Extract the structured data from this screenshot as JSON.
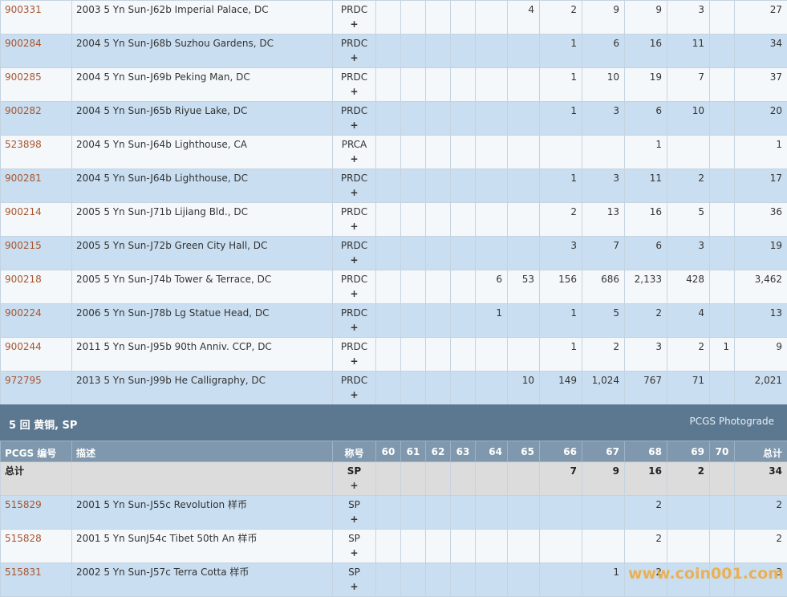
{
  "top_rows": [
    {
      "code": "900331",
      "desc": "2003 5 Yn Sun-J62b Imperial Palace, DC",
      "grade": "PRDC",
      "plus": "+",
      "c": [
        "",
        "",
        "",
        "",
        "",
        "4",
        "2",
        "9",
        "9",
        "3",
        "",
        "27"
      ]
    },
    {
      "code": "900284",
      "desc": "2004 5 Yn Sun-J68b Suzhou Gardens, DC",
      "grade": "PRDC",
      "plus": "+",
      "c": [
        "",
        "",
        "",
        "",
        "",
        "",
        "1",
        "6",
        "16",
        "11",
        "",
        "34"
      ]
    },
    {
      "code": "900285",
      "desc": "2004 5 Yn Sun-J69b Peking Man, DC",
      "grade": "PRDC",
      "plus": "+",
      "c": [
        "",
        "",
        "",
        "",
        "",
        "",
        "1",
        "10",
        "19",
        "7",
        "",
        "37"
      ]
    },
    {
      "code": "900282",
      "desc": "2004 5 Yn Sun-J65b Riyue Lake, DC",
      "grade": "PRDC",
      "plus": "+",
      "c": [
        "",
        "",
        "",
        "",
        "",
        "",
        "1",
        "3",
        "6",
        "10",
        "",
        "20"
      ]
    },
    {
      "code": "523898",
      "desc": "2004 5 Yn Sun-J64b Lighthouse, CA",
      "grade": "PRCA",
      "plus": "+",
      "c": [
        "",
        "",
        "",
        "",
        "",
        "",
        "",
        "",
        "1",
        "",
        "",
        "1"
      ]
    },
    {
      "code": "900281",
      "desc": "2004 5 Yn Sun-J64b Lighthouse, DC",
      "grade": "PRDC",
      "plus": "+",
      "c": [
        "",
        "",
        "",
        "",
        "",
        "",
        "1",
        "3",
        "11",
        "2",
        "",
        "17"
      ]
    },
    {
      "code": "900214",
      "desc": "2005 5 Yn Sun-J71b Lijiang Bld., DC",
      "grade": "PRDC",
      "plus": "+",
      "c": [
        "",
        "",
        "",
        "",
        "",
        "",
        "2",
        "13",
        "16",
        "5",
        "",
        "36"
      ]
    },
    {
      "code": "900215",
      "desc": "2005 5 Yn Sun-J72b Green City Hall, DC",
      "grade": "PRDC",
      "plus": "+",
      "c": [
        "",
        "",
        "",
        "",
        "",
        "",
        "3",
        "7",
        "6",
        "3",
        "",
        "19"
      ]
    },
    {
      "code": "900218",
      "desc": "2005 5 Yn Sun-J74b Tower & Terrace, DC",
      "grade": "PRDC",
      "plus": "+",
      "c": [
        "",
        "",
        "",
        "",
        "6",
        "53",
        "156",
        "686",
        "2,133",
        "428",
        "",
        "3,462"
      ]
    },
    {
      "code": "900224",
      "desc": "2006 5 Yn Sun-J78b Lg Statue Head, DC",
      "grade": "PRDC",
      "plus": "+",
      "c": [
        "",
        "",
        "",
        "",
        "1",
        "",
        "1",
        "5",
        "2",
        "4",
        "",
        "13"
      ]
    },
    {
      "code": "900244",
      "desc": "2011 5 Yn Sun-J95b 90th Anniv. CCP, DC",
      "grade": "PRDC",
      "plus": "+",
      "c": [
        "",
        "",
        "",
        "",
        "",
        "",
        "1",
        "2",
        "3",
        "2",
        "1",
        "9"
      ]
    },
    {
      "code": "972795",
      "desc": "2013 5 Yn Sun-J99b He Calligraphy, DC",
      "grade": "PRDC",
      "plus": "+",
      "c": [
        "",
        "",
        "",
        "",
        "",
        "10",
        "149",
        "1,024",
        "767",
        "71",
        "",
        "2,021"
      ]
    }
  ],
  "section": {
    "title": "5 回 黄铜, SP",
    "photograde": "PCGS Photograde"
  },
  "header": {
    "code": "PCGS 编号",
    "desc": "描述",
    "grade": "称号",
    "cols": [
      "60",
      "61",
      "62",
      "63",
      "64",
      "65",
      "66",
      "67",
      "68",
      "69",
      "70",
      "总计"
    ]
  },
  "total_row": {
    "label": "总计",
    "grade": "SP",
    "plus": "+",
    "c": [
      "",
      "",
      "",
      "",
      "",
      "",
      "7",
      "9",
      "16",
      "2",
      "",
      "34"
    ]
  },
  "bottom_rows": [
    {
      "code": "515829",
      "desc": "2001 5 Yn Sun-J55c Revolution 样币",
      "grade": "SP",
      "plus": "+",
      "c": [
        "",
        "",
        "",
        "",
        "",
        "",
        "",
        "",
        "2",
        "",
        "",
        "2"
      ]
    },
    {
      "code": "515828",
      "desc": "2001 5 Yn SunJ54c Tibet 50th An 样币",
      "grade": "SP",
      "plus": "+",
      "c": [
        "",
        "",
        "",
        "",
        "",
        "",
        "",
        "",
        "2",
        "",
        "",
        "2"
      ]
    },
    {
      "code": "515831",
      "desc": "2002 5 Yn Sun-J57c Terra Cotta 样币",
      "grade": "SP",
      "plus": "+",
      "c": [
        "",
        "",
        "",
        "",
        "",
        "",
        "",
        "1",
        "2",
        "",
        "",
        "3"
      ]
    }
  ],
  "watermark": "www.coin001.com"
}
